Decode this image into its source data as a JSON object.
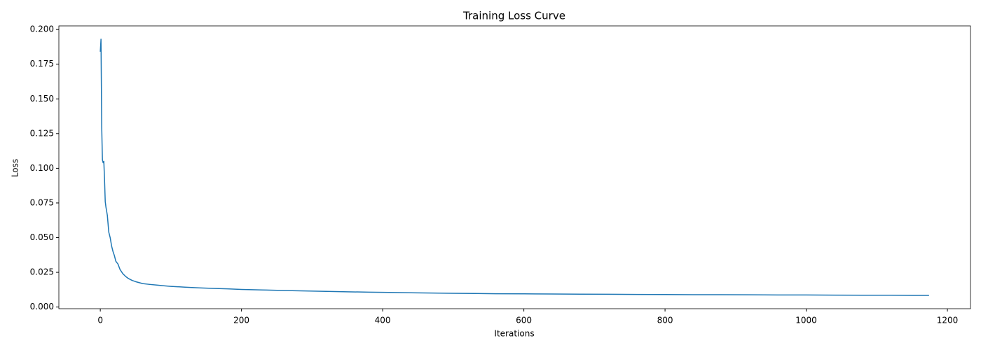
{
  "chart_data": {
    "type": "line",
    "title": "Training Loss Curve",
    "xlabel": "Iterations",
    "ylabel": "Loss",
    "x": [
      0,
      1,
      2,
      3,
      4,
      5,
      6,
      7,
      8,
      10,
      12,
      14,
      16,
      18,
      20,
      22,
      25,
      28,
      32,
      36,
      40,
      45,
      50,
      55,
      60,
      70,
      80,
      90,
      100,
      120,
      140,
      160,
      180,
      200,
      230,
      260,
      290,
      320,
      350,
      380,
      410,
      440,
      470,
      500,
      530,
      560,
      600,
      640,
      680,
      720,
      760,
      800,
      840,
      880,
      920,
      960,
      1000,
      1040,
      1080,
      1120,
      1150,
      1174
    ],
    "series": [
      {
        "name": "Loss",
        "color": "#1f77b4",
        "values": [
          0.184,
          0.193,
          0.13,
          0.106,
          0.104,
          0.105,
          0.092,
          0.076,
          0.072,
          0.066,
          0.054,
          0.05,
          0.044,
          0.04,
          0.037,
          0.033,
          0.031,
          0.027,
          0.024,
          0.022,
          0.0205,
          0.0192,
          0.0183,
          0.0176,
          0.0169,
          0.0163,
          0.0158,
          0.0153,
          0.0149,
          0.0143,
          0.0138,
          0.0134,
          0.0131,
          0.0127,
          0.0123,
          0.0119,
          0.0116,
          0.0113,
          0.011,
          0.0107,
          0.0105,
          0.0103,
          0.0101,
          0.0099,
          0.0098,
          0.0096,
          0.0095,
          0.0094,
          0.0093,
          0.0092,
          0.0091,
          0.009,
          0.0089,
          0.0089,
          0.0088,
          0.0087,
          0.0087,
          0.0086,
          0.0085,
          0.0085,
          0.0084,
          0.0084
        ]
      }
    ],
    "xlim": [
      -58.7,
      1232.7
    ],
    "ylim": [
      -0.0012,
      0.2026
    ],
    "xticks": [
      0,
      200,
      400,
      600,
      800,
      1000,
      1200
    ],
    "yticks": [
      {
        "value": 0,
        "label": "0.000"
      },
      {
        "value": 0.025,
        "label": "0.025"
      },
      {
        "value": 0.05,
        "label": "0.050"
      },
      {
        "value": 0.075,
        "label": "0.075"
      },
      {
        "value": 0.1,
        "label": "0.100"
      },
      {
        "value": 0.125,
        "label": "0.125"
      },
      {
        "value": 0.15,
        "label": "0.150"
      },
      {
        "value": 0.175,
        "label": "0.175"
      },
      {
        "value": 0.2,
        "label": "0.200"
      }
    ],
    "grid": false
  }
}
